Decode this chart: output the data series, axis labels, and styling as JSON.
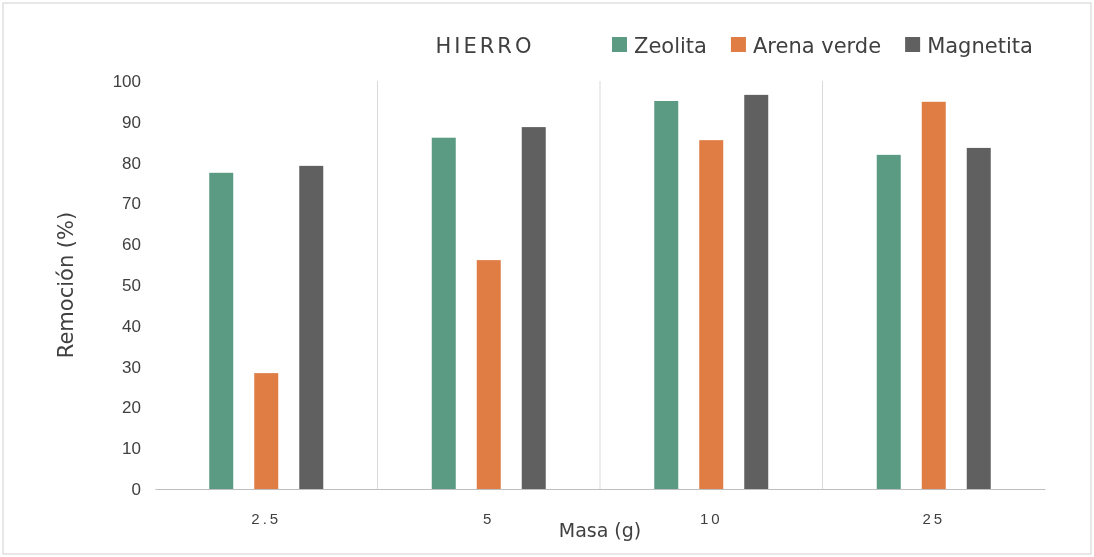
{
  "chart_data": {
    "type": "bar",
    "title": "HIERRO",
    "xlabel": "Masa (g)",
    "ylabel": "Remoción (%)",
    "categories": [
      "2.5",
      "5",
      "10",
      "25"
    ],
    "series": [
      {
        "name": "Zeolita",
        "color": "#5b9b84",
        "values": [
          77.5,
          86.1,
          95.1,
          81.9
        ]
      },
      {
        "name": "Arena verde",
        "color": "#e07d45",
        "values": [
          28.4,
          56.1,
          85.5,
          94.9
        ]
      },
      {
        "name": "Magnetita",
        "color": "#606060",
        "values": [
          79.2,
          88.7,
          96.6,
          83.6
        ]
      }
    ],
    "ylim": [
      0,
      100
    ],
    "yticks": [
      0,
      10,
      20,
      30,
      40,
      50,
      60,
      70,
      80,
      90,
      100
    ],
    "grid": "x",
    "legend": "top right"
  }
}
